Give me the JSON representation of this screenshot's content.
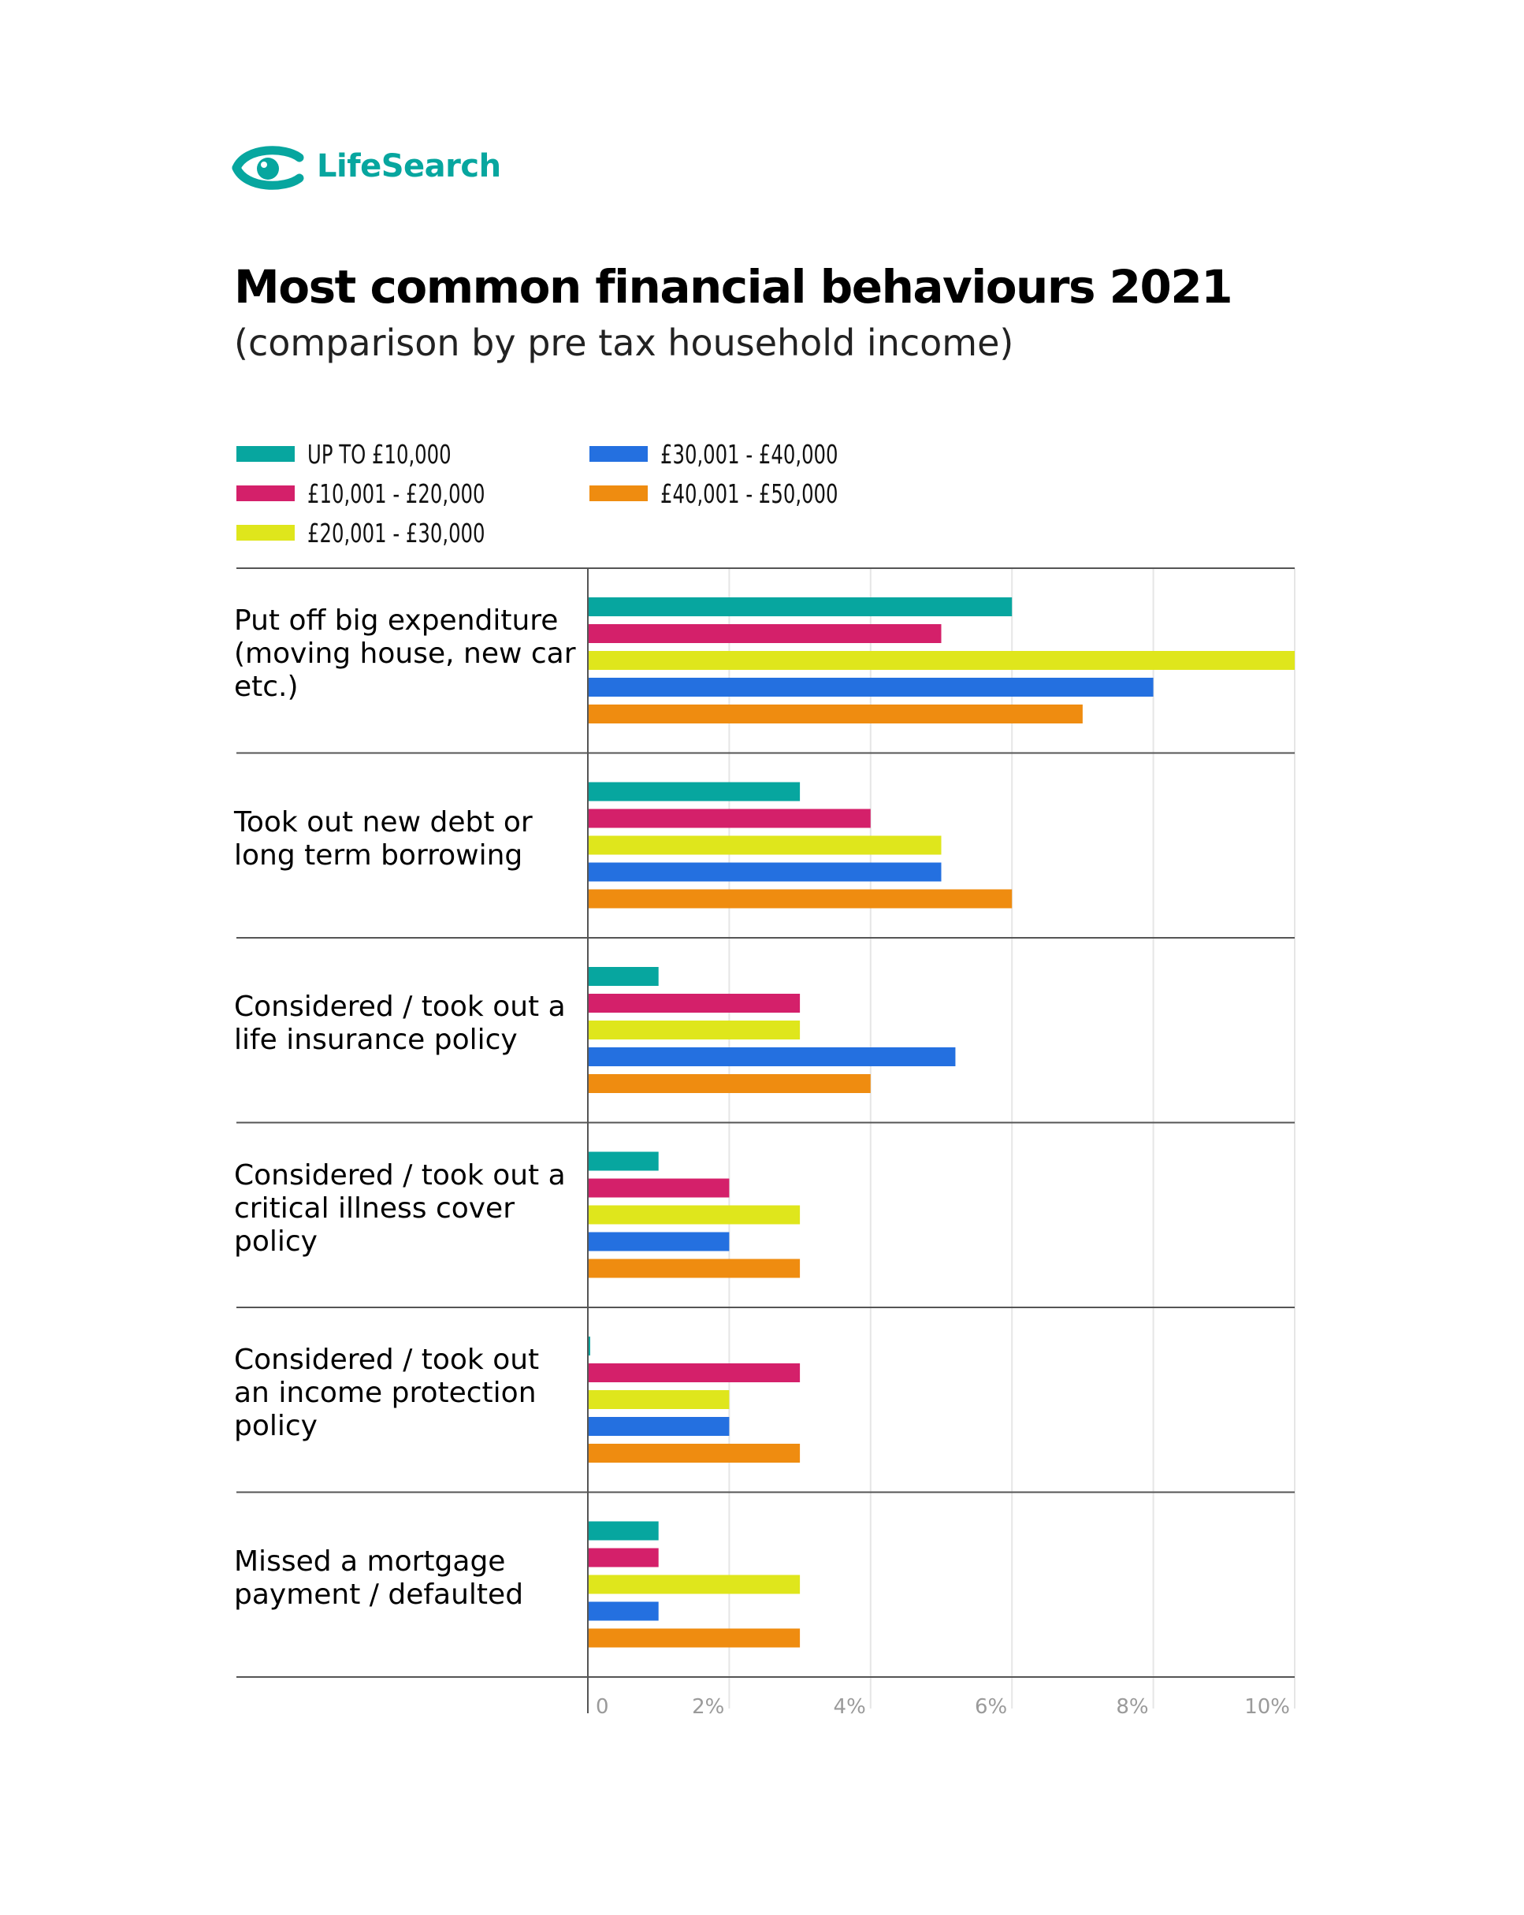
{
  "brand": {
    "name": "LifeSearch",
    "color": "#07a69f"
  },
  "title": "Most common financial behaviours 2021",
  "subtitle": "(comparison by pre tax household income)",
  "chart_data": {
    "type": "bar",
    "orientation": "horizontal",
    "title": "Most common financial behaviours 2021",
    "subtitle": "(comparison by pre tax household income)",
    "xlabel": "",
    "ylabel": "",
    "xlim": [
      0,
      10
    ],
    "x_ticks": [
      "0",
      "2%",
      "4%",
      "6%",
      "8%",
      "10%"
    ],
    "grid": true,
    "legend_position": "top",
    "categories": [
      "Put off big expenditure (moving house, new car etc.)",
      "Took out new debt or long term borrowing",
      "Considered / took out a life insurance policy",
      "Considered / took out a critical illness cover policy",
      "Considered / took out an income protection policy",
      "Missed a mortgage payment / defaulted"
    ],
    "series": [
      {
        "name": "UP TO £10,000",
        "color": "#07a69f",
        "values": [
          6,
          3,
          1,
          1,
          0,
          1
        ]
      },
      {
        "name": "£10,001 - £20,000",
        "color": "#d4206a",
        "values": [
          5,
          4,
          3,
          2,
          3,
          1
        ]
      },
      {
        "name": "£20,001 - £30,000",
        "color": "#dfe61c",
        "values": [
          10,
          5,
          3,
          3,
          2,
          3
        ]
      },
      {
        "name": "£30,001 - £40,000",
        "color": "#2470e0",
        "values": [
          8,
          5,
          5.2,
          2,
          2,
          1
        ]
      },
      {
        "name": "£40,001 - £50,000",
        "color": "#ef8c10",
        "values": [
          7,
          6,
          4,
          3,
          3,
          3
        ]
      }
    ]
  }
}
